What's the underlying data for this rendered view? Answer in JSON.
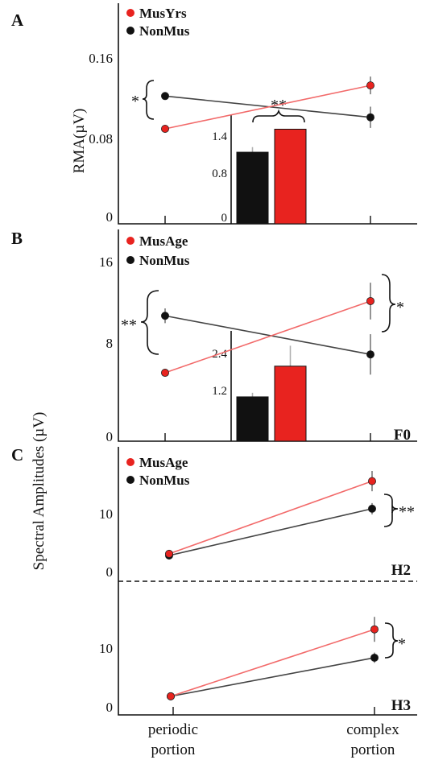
{
  "colors": {
    "musician": "#e8231f",
    "nonmusician": "#111111",
    "line_musician": "#f26a6a",
    "line_nonmusician": "#444444",
    "errorbar": "#7a7a7a"
  },
  "panel_letters": [
    "A",
    "B",
    "C"
  ],
  "y_axis_shared_label": "Spectral Amplitudes (µV)",
  "x_axis": {
    "ticks": [
      "periodic",
      "complex"
    ],
    "subticks": [
      "portion",
      "portion"
    ]
  },
  "chart_data": [
    {
      "panel": "A",
      "type": "line",
      "ylabel": "RMA(µV)",
      "yticks": [
        "0",
        "0.08",
        "0.16"
      ],
      "ylim": [
        0,
        0.18
      ],
      "categories": [
        "periodic portion",
        "complex portion"
      ],
      "series": [
        {
          "name": "MusYrs",
          "values": [
            0.1,
            0.149
          ],
          "errors": [
            0.003,
            0.01
          ]
        },
        {
          "name": "NonMus",
          "values": [
            0.137,
            0.113
          ],
          "errors": [
            0.003,
            0.012
          ]
        }
      ],
      "annotations": [
        {
          "text": "*",
          "at": "periodic portion"
        }
      ],
      "inset": {
        "type": "bar",
        "yticks": [
          "0",
          "0.8",
          "1.4"
        ],
        "ylim": [
          0,
          1.7
        ],
        "series": [
          {
            "name": "NonMus",
            "value": 1.12,
            "error": 0.08
          },
          {
            "name": "MusYrs",
            "value": 1.48,
            "error": 0
          }
        ],
        "annotation": "**"
      }
    },
    {
      "panel": "B",
      "type": "line",
      "tag": "F0",
      "yticks": [
        "0",
        "8",
        "16"
      ],
      "ylim": [
        0,
        19
      ],
      "categories": [
        "periodic portion",
        "complex portion"
      ],
      "series": [
        {
          "name": "MusAge",
          "values": [
            7.0,
            14.8
          ],
          "errors": [
            0.4,
            2.0
          ]
        },
        {
          "name": "NonMus",
          "values": [
            13.2,
            9.0
          ],
          "errors": [
            0.8,
            2.2
          ]
        }
      ],
      "annotations": [
        {
          "text": "**",
          "at": "periodic portion"
        },
        {
          "text": "*",
          "at": "complex portion"
        }
      ],
      "inset": {
        "type": "bar",
        "yticks": [
          "1.2",
          "2.4"
        ],
        "ylim": [
          0,
          3.4
        ],
        "series": [
          {
            "name": "NonMus",
            "value": 1.3,
            "error": 0.12
          },
          {
            "name": "MusAge",
            "value": 2.2,
            "error": 0.6
          }
        ]
      }
    },
    {
      "panel": "C",
      "type": "line",
      "tag": "H2",
      "yticks": [
        "0",
        "10"
      ],
      "ylim": [
        0,
        20
      ],
      "categories": [
        "periodic portion",
        "complex portion"
      ],
      "series": [
        {
          "name": "MusAge",
          "values": [
            3.3,
            16.2
          ],
          "errors": [
            0.6,
            1.8
          ]
        },
        {
          "name": "NonMus",
          "values": [
            3.0,
            11.3
          ],
          "errors": [
            0.4,
            1.0
          ]
        }
      ],
      "annotations": [
        {
          "text": "**",
          "at": "complex portion"
        }
      ]
    },
    {
      "panel": "C",
      "type": "line",
      "tag": "H3",
      "yticks": [
        "0",
        "10"
      ],
      "ylim": [
        0,
        20
      ],
      "categories": [
        "periodic portion",
        "complex portion"
      ],
      "series": [
        {
          "name": "MusAge",
          "values": [
            2.0,
            13.8
          ],
          "errors": [
            0.3,
            2.2
          ]
        },
        {
          "name": "NonMus",
          "values": [
            2.0,
            8.8
          ],
          "errors": [
            0.3,
            0.9
          ]
        }
      ],
      "annotations": [
        {
          "text": "*",
          "at": "complex portion"
        }
      ]
    }
  ]
}
